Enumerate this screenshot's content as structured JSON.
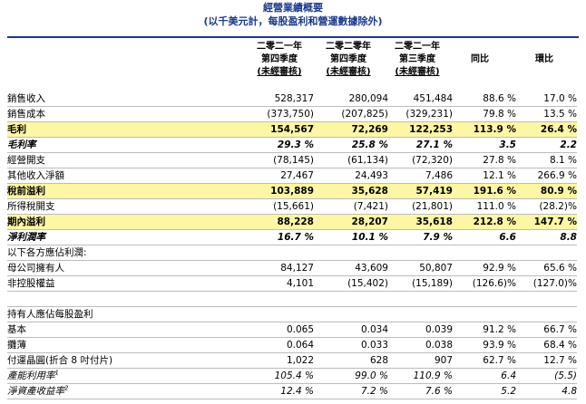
{
  "title": "經營業績概要",
  "subtitle": "(以千美元計，每股盈利和營運數據除外)",
  "headers": [
    {
      "line1": "二零二一年",
      "line2": "第四季度",
      "line3": "(未經審核)"
    },
    {
      "line1": "二零二零年",
      "line2": "第四季度",
      "line3": "(未經審核)"
    },
    {
      "line1": "二零二一年",
      "line2": "第三季度",
      "line3": "(未經審核)"
    },
    {
      "line1": "同比"
    },
    {
      "line1": "環比"
    }
  ],
  "rows": [
    {
      "label": "銷售收入",
      "values": [
        "528,317",
        "280,094",
        "451,484",
        "88.6 %",
        "17.0 %"
      ]
    },
    {
      "label": "銷售成本",
      "values": [
        "(373,750)",
        "(207,825)",
        "(329,231)",
        "79.8 %",
        "13.5 %"
      ]
    },
    {
      "label": "毛利",
      "values": [
        "154,567",
        "72,269",
        "122,253",
        "113.9 %",
        "26.4 %"
      ]
    },
    {
      "label": "毛利率",
      "values": [
        "29.3 %",
        "25.8 %",
        "27.1 %",
        "3.5",
        "2.2"
      ]
    },
    {
      "label": "經營開支",
      "values": [
        "(78,145)",
        "(61,134)",
        "(72,320)",
        "27.8 %",
        "8.1 %"
      ]
    },
    {
      "label": "其他收入淨額",
      "values": [
        "27,467",
        "24,493",
        "7,486",
        "12.1 %",
        "266.9 %"
      ]
    },
    {
      "label": "稅前溢利",
      "values": [
        "103,889",
        "35,628",
        "57,419",
        "191.6 %",
        "80.9 %"
      ]
    },
    {
      "label": "所得稅開支",
      "values": [
        "(15,661)",
        "(7,421)",
        "(21,801)",
        "111.0 %",
        "(28.2)%"
      ]
    },
    {
      "label": "期內溢利",
      "values": [
        "88,228",
        "28,207",
        "35,618",
        "212.8 %",
        "147.7 %"
      ]
    },
    {
      "label": "淨利潤率",
      "values": [
        "16.7 %",
        "10.1 %",
        "7.9 %",
        "6.6",
        "8.8"
      ]
    },
    {
      "label": "以下各方應佔利潤:",
      "values": [
        "",
        "",
        "",
        "",
        ""
      ]
    },
    {
      "label": "母公司擁有人",
      "values": [
        "84,127",
        "43,609",
        "50,807",
        "92.9 %",
        "65.6 %"
      ]
    },
    {
      "label": "非控股權益",
      "values": [
        "4,101",
        "(15,402)",
        "(15,189)",
        "(126.6)%",
        "(127.0)%"
      ]
    },
    {
      "label": "",
      "values": [
        "",
        "",
        "",
        "",
        ""
      ]
    },
    {
      "label": "持有人應佔每股盈利",
      "values": [
        "",
        "",
        "",
        "",
        ""
      ]
    },
    {
      "label": "基本",
      "values": [
        "0.065",
        "0.034",
        "0.039",
        "91.2 %",
        "66.7 %"
      ]
    },
    {
      "label": "攤薄",
      "values": [
        "0.064",
        "0.033",
        "0.038",
        "93.9 %",
        "68.4 %"
      ]
    },
    {
      "label": "付運晶圓(折合 8 吋付片)",
      "values": [
        "1,022",
        "628",
        "907",
        "62.7 %",
        "12.7 %"
      ]
    },
    {
      "label": "產能利用率",
      "sup": "1",
      "values": [
        "105.4 %",
        "99.0 %",
        "110.9 %",
        "6.4",
        "(5.5)"
      ]
    },
    {
      "label": "淨資產收益率",
      "sup": "2",
      "values": [
        "12.4 %",
        "7.2 %",
        "7.6 %",
        "5.2",
        "4.8"
      ]
    }
  ]
}
